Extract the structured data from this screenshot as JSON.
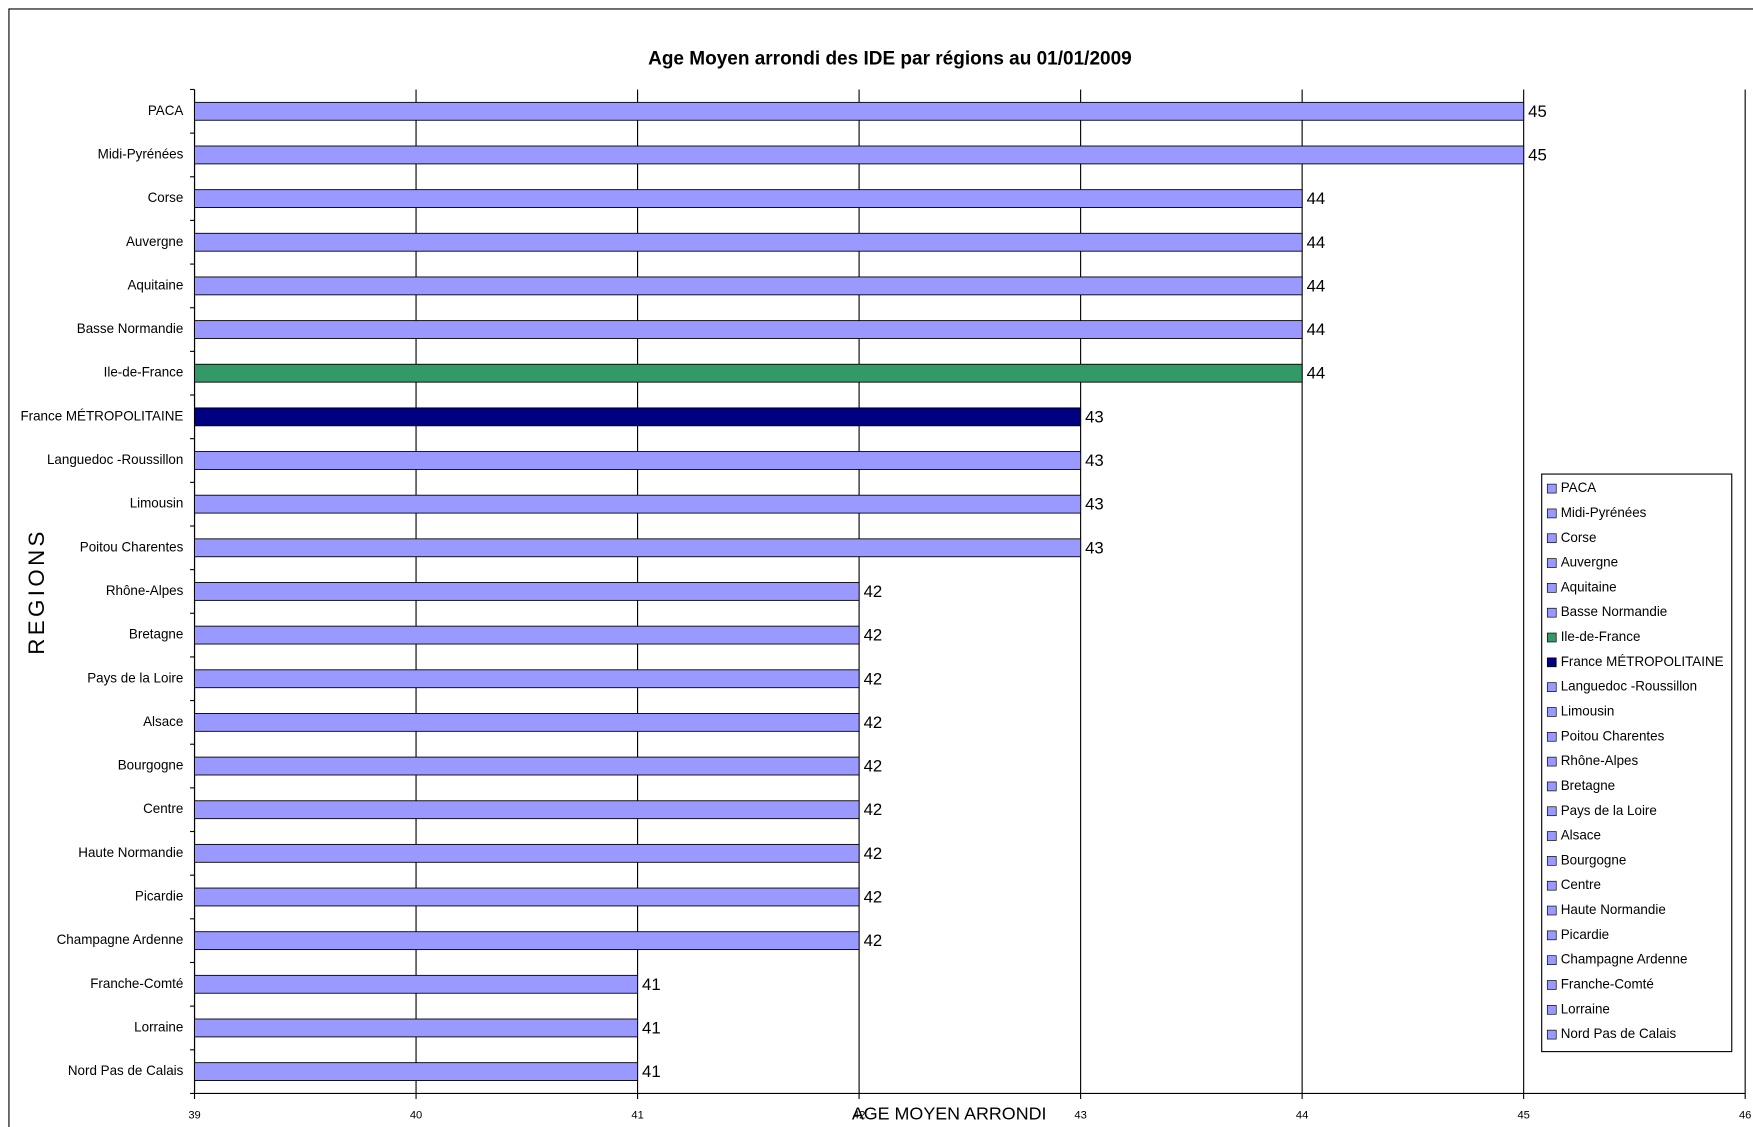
{
  "chart_data": {
    "type": "barh",
    "title": "Age Moyen arrondi des IDE par régions au 01/01/2009",
    "x_label": "AGE MOYEN ARRONDI",
    "y_label": "REGIONS",
    "categories": [
      "PACA",
      "Midi-Pyrénées",
      "Corse",
      "Auvergne",
      "Aquitaine",
      "Basse Normandie",
      "Ile-de-France",
      "France MÉTROPOLITAINE",
      "Languedoc -Roussillon",
      "Limousin",
      "Poitou Charentes",
      "Rhône-Alpes",
      "Bretagne",
      "Pays de la Loire",
      "Alsace",
      "Bourgogne",
      "Centre",
      "Haute Normandie",
      "Picardie",
      "Champagne Ardenne",
      "Franche-Comté",
      "Lorraine",
      "Nord Pas de Calais"
    ],
    "values": [
      45,
      45,
      44,
      44,
      44,
      44,
      44,
      43,
      43,
      43,
      43,
      42,
      42,
      42,
      42,
      42,
      42,
      42,
      42,
      42,
      41,
      41,
      41
    ],
    "colors": [
      "#9999ff",
      "#9999ff",
      "#9999ff",
      "#9999ff",
      "#9999ff",
      "#9999ff",
      "#339966",
      "#000080",
      "#9999ff",
      "#9999ff",
      "#9999ff",
      "#9999ff",
      "#9999ff",
      "#9999ff",
      "#9999ff",
      "#9999ff",
      "#9999ff",
      "#9999ff",
      "#9999ff",
      "#9999ff",
      "#9999ff",
      "#9999ff",
      "#9999ff"
    ],
    "xlim": [
      39,
      46
    ],
    "xticks": [
      39,
      40,
      41,
      42,
      43,
      44,
      45,
      46
    ],
    "grid": true,
    "legend": "right"
  }
}
